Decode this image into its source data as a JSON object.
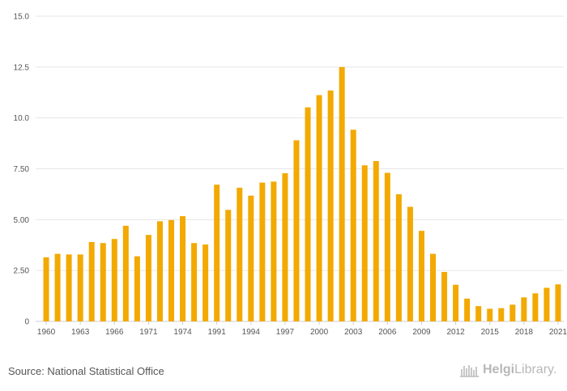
{
  "chart_data": {
    "type": "bar",
    "categories": [
      "1960",
      "1961",
      "1962",
      "1963",
      "1964",
      "1965",
      "1966",
      "1967",
      "1970",
      "1971",
      "1972",
      "1973",
      "1974",
      "1975",
      "1976",
      "1991",
      "1992",
      "1993",
      "1994",
      "1995",
      "1996",
      "1997",
      "1998",
      "1999",
      "2000",
      "2001",
      "2002",
      "2003",
      "2004",
      "2005",
      "2006",
      "2007",
      "2008",
      "2009",
      "2010",
      "2011",
      "2012",
      "2013",
      "2014",
      "2015",
      "2016",
      "2017",
      "2018",
      "2019",
      "2020",
      "2021"
    ],
    "x_tick_labels": [
      "1960",
      "1963",
      "1966",
      "1971",
      "1974",
      "1991",
      "1994",
      "1997",
      "2000",
      "2003",
      "2006",
      "2009",
      "2012",
      "2015",
      "2018",
      "2021"
    ],
    "values": [
      3.15,
      3.32,
      3.29,
      3.29,
      3.9,
      3.85,
      4.05,
      4.7,
      3.2,
      4.25,
      4.92,
      4.98,
      5.17,
      3.85,
      3.78,
      6.72,
      5.48,
      6.57,
      6.18,
      6.82,
      6.87,
      7.28,
      8.9,
      10.52,
      11.12,
      11.35,
      12.5,
      9.42,
      7.67,
      7.88,
      7.3,
      6.25,
      5.63,
      4.45,
      3.32,
      2.43,
      1.8,
      1.12,
      0.75,
      0.62,
      0.65,
      0.82,
      1.18,
      1.38,
      1.65,
      1.82
    ],
    "y_ticks": [
      "0",
      "2.50",
      "5.00",
      "7.50",
      "10.0",
      "12.5",
      "15.0"
    ],
    "ylim": [
      0,
      15
    ],
    "color": "#f2a900",
    "grid": true,
    "legend": "none"
  },
  "source": "Source: National Statistical Office",
  "brand": {
    "name": "Helgi",
    "suffix": "Library.",
    "icon": "helgi-library-logo-icon"
  }
}
